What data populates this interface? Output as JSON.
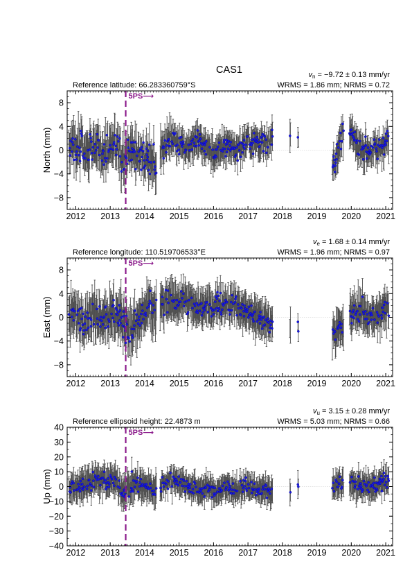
{
  "title": "CAS1",
  "colors": {
    "point_fill": "#1a1adc",
    "point_edge": "#0000a0",
    "error_bar": "#505050",
    "event_line": "#8b1a8b",
    "zero_line": "#c8c8c8",
    "axes": "#000000"
  },
  "event": {
    "label": "5PS",
    "arrow": "⟶",
    "decimal_year": 2013.45
  },
  "year_ticks": [
    "2012",
    "2013",
    "2014",
    "2015",
    "2016",
    "2017",
    "2018",
    "2019",
    "2020",
    "2021"
  ],
  "panels": [
    {
      "id": "north",
      "ylabel": "North (mm)",
      "reference": "Reference latitude: 66.283360759°S",
      "velocity_symbol": "v",
      "velocity_sub": "n",
      "velocity_text": " = −9.72 ± 0.13 mm/yr",
      "stats": "WRMS = 1.86 mm; NRMS = 0.72",
      "yticks": [
        "−8",
        "−4",
        "0",
        "4",
        "8"
      ]
    },
    {
      "id": "east",
      "ylabel": "East (mm)",
      "reference": "Reference longitude: 110.519706533°E",
      "velocity_symbol": "v",
      "velocity_sub": "e",
      "velocity_text": " = 1.68 ± 0.14 mm/yr",
      "stats": "WRMS = 1.96 mm; NRMS = 0.97",
      "yticks": [
        "−8",
        "−4",
        "0",
        "4",
        "8"
      ]
    },
    {
      "id": "up",
      "ylabel": "Up (mm)",
      "reference": "Reference ellipsoid height: 22.4873 m",
      "velocity_symbol": "v",
      "velocity_sub": "u",
      "velocity_text": " = 3.15 ± 0.28 mm/yr",
      "stats": "WRMS = 5.03 mm; NRMS = 0.66",
      "yticks": [
        "−40",
        "−30",
        "−20",
        "−10",
        "0",
        "10",
        "20",
        "30",
        "40"
      ]
    }
  ],
  "chart_data": [
    {
      "type": "scatter",
      "title": "CAS1",
      "ylabel": "North (mm)",
      "xlim": [
        2011.75,
        2021.2
      ],
      "ylim": [
        -10,
        10
      ],
      "x_ticks": [
        2012,
        2013,
        2014,
        2015,
        2016,
        2017,
        2018,
        2019,
        2020,
        2021
      ],
      "y_ticks": [
        -8,
        -4,
        0,
        4,
        8
      ],
      "grid": false,
      "error_bars": true,
      "data_coverage": [
        [
          2011.8,
          2014.35
        ],
        [
          2014.45,
          2017.72
        ],
        [
          2018.22,
          2018.24
        ],
        [
          2018.45,
          2018.47
        ],
        [
          2019.45,
          2019.78
        ],
        [
          2019.95,
          2021.1
        ]
      ],
      "series": [
        {
          "x": [
            2011.9,
            2012.2,
            2012.5,
            2012.8,
            2013.1,
            2013.4,
            2013.7,
            2014.0,
            2014.3,
            2014.6,
            2014.9,
            2015.2,
            2015.5,
            2015.8,
            2016.1,
            2016.4,
            2016.7,
            2017.0,
            2017.3,
            2017.6,
            2018.23,
            2018.46,
            2019.5,
            2019.65,
            2019.75,
            2020.0,
            2020.2,
            2020.4,
            2020.6,
            2020.8,
            2021.0
          ],
          "y": [
            1.5,
            0.5,
            1.0,
            -0.5,
            0.5,
            -1.5,
            0.0,
            -1.0,
            -2.5,
            1.5,
            2.0,
            0.5,
            1.5,
            0.5,
            -0.5,
            1.0,
            0.0,
            1.5,
            1.0,
            2.0,
            2.5,
            1.0,
            -2.5,
            0.5,
            2.5,
            2.5,
            1.0,
            0.0,
            -0.5,
            0.0,
            1.5
          ],
          "scatter_mm": [
            2.6,
            2.4,
            2.6,
            2.4,
            2.6,
            3.0,
            2.6,
            2.4,
            2.6,
            2.0,
            1.8,
            1.8,
            1.8,
            1.6,
            1.8,
            1.8,
            1.6,
            1.6,
            1.8,
            1.8,
            1.5,
            1.5,
            1.8,
            1.8,
            1.8,
            1.6,
            1.6,
            1.6,
            1.6,
            1.6,
            1.6
          ],
          "sigma_mm": [
            2.6,
            2.6,
            2.6,
            2.6,
            2.6,
            3.0,
            2.6,
            2.6,
            2.6,
            2.0,
            2.0,
            2.0,
            2.0,
            2.0,
            2.0,
            2.0,
            2.0,
            2.0,
            2.0,
            2.0,
            2.0,
            2.0,
            2.0,
            2.0,
            2.0,
            2.0,
            2.0,
            2.0,
            2.0,
            2.0,
            2.0
          ]
        }
      ]
    },
    {
      "type": "scatter",
      "ylabel": "East (mm)",
      "xlim": [
        2011.75,
        2021.2
      ],
      "ylim": [
        -10,
        10
      ],
      "x_ticks": [
        2012,
        2013,
        2014,
        2015,
        2016,
        2017,
        2018,
        2019,
        2020,
        2021
      ],
      "y_ticks": [
        -8,
        -4,
        0,
        4,
        8
      ],
      "grid": false,
      "error_bars": true,
      "data_coverage": [
        [
          2011.8,
          2014.35
        ],
        [
          2014.45,
          2017.72
        ],
        [
          2018.22,
          2018.24
        ],
        [
          2018.45,
          2018.47
        ],
        [
          2019.45,
          2019.78
        ],
        [
          2019.95,
          2021.1
        ]
      ],
      "series": [
        {
          "x": [
            2011.9,
            2012.2,
            2012.5,
            2012.8,
            2013.1,
            2013.4,
            2013.7,
            2014.0,
            2014.3,
            2014.6,
            2014.9,
            2015.2,
            2015.5,
            2015.8,
            2016.1,
            2016.4,
            2016.7,
            2017.0,
            2017.3,
            2017.6,
            2018.23,
            2018.46,
            2019.5,
            2019.65,
            2019.75,
            2020.0,
            2020.2,
            2020.4,
            2020.6,
            2020.8,
            2021.0
          ],
          "y": [
            0.5,
            0.0,
            1.0,
            0.5,
            0.5,
            -1.0,
            -2.0,
            1.0,
            1.5,
            2.5,
            3.0,
            3.0,
            1.5,
            1.5,
            2.0,
            2.5,
            2.0,
            0.5,
            0.0,
            -1.0,
            -1.0,
            -2.5,
            -2.0,
            -2.5,
            -1.0,
            0.5,
            1.5,
            0.5,
            0.0,
            0.5,
            1.5
          ],
          "scatter_mm": [
            2.4,
            2.4,
            2.4,
            2.4,
            2.6,
            3.0,
            2.6,
            2.4,
            2.6,
            2.0,
            2.0,
            1.8,
            1.8,
            1.8,
            1.8,
            1.8,
            1.8,
            1.8,
            1.8,
            1.8,
            1.5,
            1.5,
            2.0,
            2.2,
            2.0,
            1.8,
            1.8,
            1.8,
            1.8,
            1.8,
            1.8
          ],
          "sigma_mm": [
            2.8,
            2.8,
            2.8,
            2.8,
            2.8,
            3.2,
            2.8,
            2.8,
            2.8,
            2.4,
            2.4,
            2.4,
            2.4,
            2.4,
            2.4,
            2.4,
            2.4,
            2.4,
            2.4,
            2.4,
            2.2,
            2.2,
            2.4,
            2.4,
            2.4,
            2.4,
            2.4,
            2.4,
            2.4,
            2.4,
            2.4
          ]
        }
      ]
    },
    {
      "type": "scatter",
      "ylabel": "Up (mm)",
      "xlim": [
        2011.75,
        2021.2
      ],
      "ylim": [
        -40,
        40
      ],
      "x_ticks": [
        2012,
        2013,
        2014,
        2015,
        2016,
        2017,
        2018,
        2019,
        2020,
        2021
      ],
      "y_ticks": [
        -40,
        -30,
        -20,
        -10,
        0,
        10,
        20,
        30,
        40
      ],
      "grid": false,
      "error_bars": true,
      "data_coverage": [
        [
          2011.8,
          2014.35
        ],
        [
          2014.45,
          2017.72
        ],
        [
          2018.22,
          2018.24
        ],
        [
          2018.45,
          2018.47
        ],
        [
          2019.45,
          2019.78
        ],
        [
          2019.95,
          2021.1
        ]
      ],
      "series": [
        {
          "x": [
            2011.9,
            2012.2,
            2012.5,
            2012.8,
            2013.1,
            2013.4,
            2013.7,
            2014.0,
            2014.3,
            2014.6,
            2014.9,
            2015.2,
            2015.5,
            2015.8,
            2016.1,
            2016.4,
            2016.7,
            2017.0,
            2017.3,
            2017.6,
            2018.23,
            2018.46,
            2019.5,
            2019.65,
            2019.75,
            2020.0,
            2020.2,
            2020.4,
            2020.6,
            2020.8,
            2021.0
          ],
          "y": [
            0.0,
            2.0,
            5.0,
            3.0,
            4.0,
            -3.0,
            2.0,
            0.0,
            -2.0,
            3.0,
            5.0,
            1.0,
            -2.0,
            -1.0,
            -3.0,
            0.0,
            -2.0,
            0.0,
            -2.0,
            -3.0,
            -2.0,
            -1.0,
            -1.0,
            2.0,
            3.0,
            2.0,
            0.0,
            1.0,
            0.0,
            2.0,
            4.0
          ],
          "scatter_mm": [
            5.5,
            5.5,
            5.5,
            5.5,
            5.5,
            7.0,
            6.0,
            5.5,
            6.0,
            5.0,
            6.0,
            4.5,
            4.5,
            4.5,
            4.5,
            4.5,
            4.5,
            4.5,
            4.5,
            4.5,
            4.0,
            4.0,
            4.5,
            4.5,
            4.5,
            4.5,
            4.5,
            4.5,
            4.5,
            4.5,
            5.0
          ],
          "sigma_mm": [
            8.0,
            8.0,
            8.0,
            8.0,
            8.0,
            9.0,
            8.0,
            8.0,
            8.0,
            7.0,
            7.0,
            7.0,
            7.0,
            7.0,
            7.0,
            7.0,
            7.0,
            7.0,
            7.0,
            7.0,
            7.0,
            7.0,
            7.0,
            7.0,
            7.0,
            7.0,
            7.0,
            7.0,
            7.0,
            7.0,
            7.0
          ]
        }
      ]
    }
  ]
}
